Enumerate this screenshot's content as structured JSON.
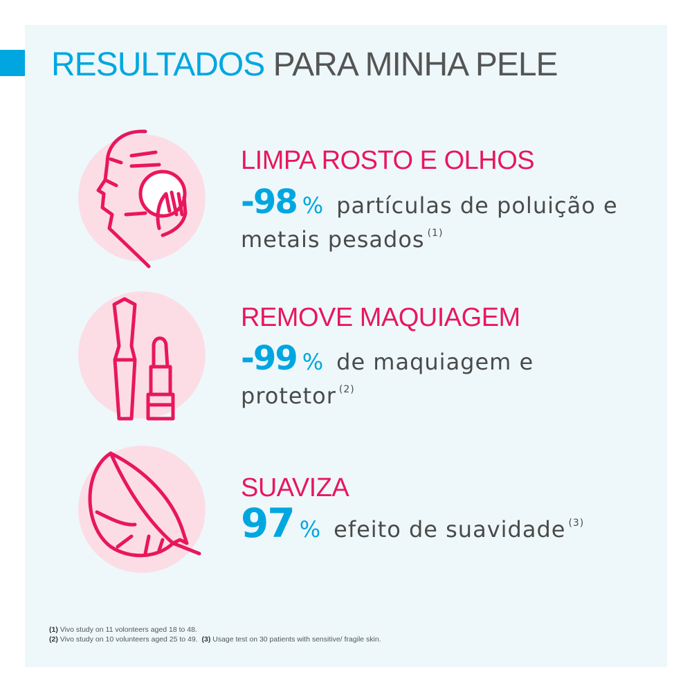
{
  "title": {
    "part1": "RESULTADOS",
    "part2": "PARA MINHA PELE"
  },
  "colors": {
    "blue": "#00a6e0",
    "pink": "#e8175d",
    "background": "#eef8fa",
    "circle": "#fcdde6"
  },
  "items": [
    {
      "icon": "face-cleansing-icon",
      "heading": "LIMPA ROSTO E OLHOS",
      "value": "-98",
      "unit": "%",
      "text": "partículas de poluição e metais pesados",
      "ref": "(1)"
    },
    {
      "icon": "makeup-icon",
      "heading": "REMOVE MAQUIAGEM",
      "value": "-99",
      "unit": "%",
      "text": "de maquiagem e protetor",
      "ref": "(2)"
    },
    {
      "icon": "feather-icon",
      "heading": "SUAVIZA",
      "value": "97",
      "unit": "%",
      "text": "efeito de suavidade",
      "ref": "(3)"
    }
  ],
  "footnotes": [
    {
      "ref": "(1)",
      "text": "Vivo study on 11 volonteers aged 18 to 48."
    },
    {
      "ref": "(2)",
      "text": "Vivo study on 10 volunteers aged 25 to 49."
    },
    {
      "ref": "(3)",
      "text": "Usage test on 30 patients with sensitive/ fragile skin."
    }
  ]
}
